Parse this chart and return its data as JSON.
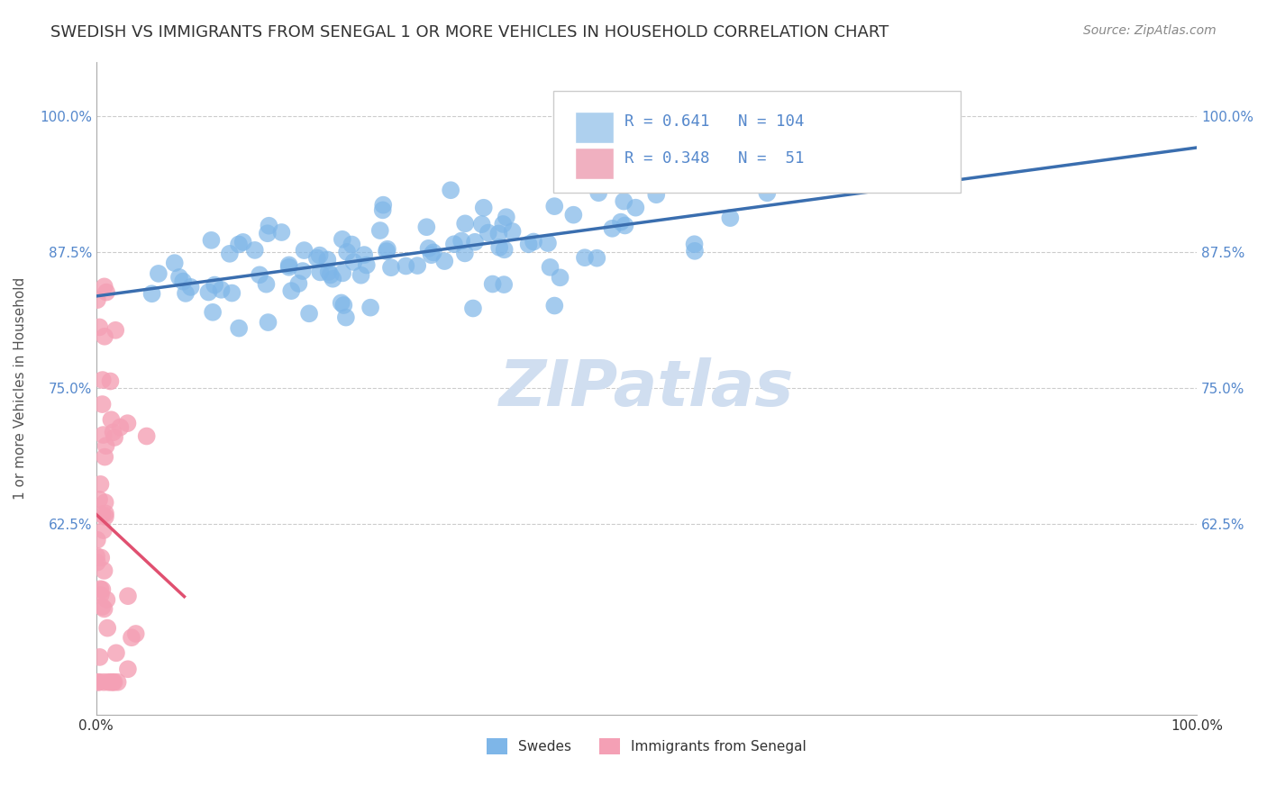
{
  "title": "SWEDISH VS IMMIGRANTS FROM SENEGAL 1 OR MORE VEHICLES IN HOUSEHOLD CORRELATION CHART",
  "source": "Source: ZipAtlas.com",
  "ylabel": "1 or more Vehicles in Household",
  "xlabel": "",
  "watermark": "ZIPatlas",
  "legend_swedish": "Swedes",
  "legend_immigrant": "Immigrants from Senegal",
  "blue_R": 0.641,
  "blue_N": 104,
  "pink_R": 0.348,
  "pink_N": 51,
  "blue_color": "#7EB6E8",
  "pink_color": "#F4A0B5",
  "blue_line_color": "#3A6EAF",
  "pink_line_color": "#E05070",
  "xlim": [
    0.0,
    1.0
  ],
  "ylim": [
    0.45,
    1.05
  ],
  "yticks": [
    0.625,
    0.75,
    0.875,
    1.0
  ],
  "ytick_labels": [
    "62.5%",
    "75.0%",
    "87.5%",
    "100.0%"
  ],
  "xtick_labels": [
    "0.0%",
    "100.0%"
  ],
  "xticks": [
    0.0,
    1.0
  ],
  "blue_seed": 42,
  "pink_seed": 7,
  "background_color": "#FFFFFF",
  "grid_color": "#CCCCCC",
  "title_fontsize": 13,
  "axis_label_fontsize": 11,
  "tick_fontsize": 11,
  "watermark_fontsize": 52,
  "watermark_color": "#D0DEF0",
  "legend_box_color_blue": "#AED0EE",
  "legend_box_color_pink": "#F0B0C0"
}
